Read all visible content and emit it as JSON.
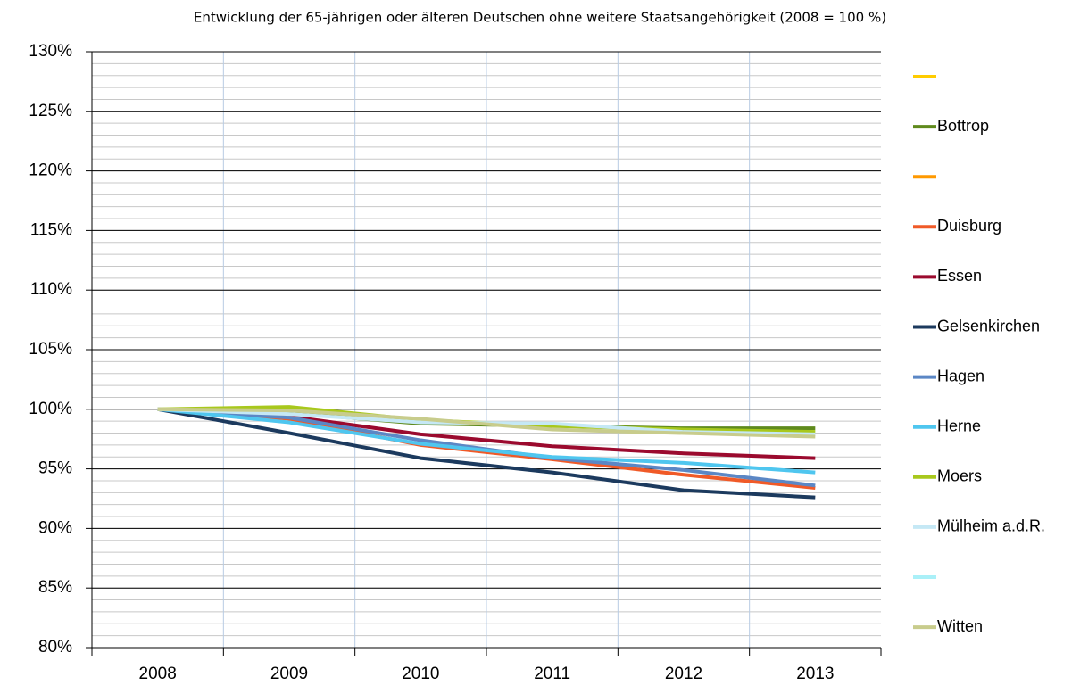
{
  "chart_data": {
    "type": "line",
    "title": "Entwicklung der 65-jährigen oder älteren Deutschen ohne weitere Staatsangehörigkeit (2008 = 100 %)",
    "categories": [
      "2008",
      "2009",
      "2010",
      "2011",
      "2012",
      "2013"
    ],
    "ylim": [
      80,
      130
    ],
    "yticks": [
      {
        "value": 80,
        "label": "80%"
      },
      {
        "value": 85,
        "label": "85%"
      },
      {
        "value": 90,
        "label": "90%"
      },
      {
        "value": 95,
        "label": "95%"
      },
      {
        "value": 100,
        "label": "100%"
      },
      {
        "value": 105,
        "label": "105%"
      },
      {
        "value": 110,
        "label": "110%"
      },
      {
        "value": 115,
        "label": "115%"
      },
      {
        "value": 120,
        "label": "120%"
      },
      {
        "value": 125,
        "label": "125%"
      },
      {
        "value": 130,
        "label": "130%"
      }
    ],
    "grid": true,
    "legend": "right",
    "series": [
      {
        "name": null,
        "color": "#ffcc00",
        "values": [
          null,
          null,
          null,
          null,
          null,
          null
        ]
      },
      {
        "name": "Bottrop",
        "color": "#5f8a1c",
        "values": [
          100,
          99.7,
          98.8,
          98.6,
          98.4,
          98.4
        ]
      },
      {
        "name": null,
        "color": "#ff9900",
        "values": [
          null,
          null,
          null,
          null,
          null,
          null
        ]
      },
      {
        "name": "Duisburg",
        "color": "#f05a28",
        "values": [
          100,
          99.2,
          97.0,
          95.8,
          94.5,
          93.4
        ]
      },
      {
        "name": "Essen",
        "color": "#9b0a2e",
        "values": [
          100,
          99.4,
          97.9,
          96.9,
          96.3,
          95.9
        ]
      },
      {
        "name": "Gelsenkirchen",
        "color": "#1c3a5e",
        "values": [
          100,
          98.0,
          95.9,
          94.7,
          93.2,
          92.6
        ]
      },
      {
        "name": "Hagen",
        "color": "#5b87c5",
        "values": [
          100,
          99.3,
          97.4,
          95.9,
          94.9,
          93.6
        ]
      },
      {
        "name": "Herne",
        "color": "#4fc6ef",
        "values": [
          100,
          98.9,
          97.1,
          96.0,
          95.5,
          94.7
        ]
      },
      {
        "name": "Moers",
        "color": "#a8c81c",
        "values": [
          100,
          100.2,
          99.1,
          98.6,
          98.3,
          98.1
        ]
      },
      {
        "name": "Mülheim a.d.R.",
        "color": "#c5e8f5",
        "values": [
          100,
          99.6,
          98.9,
          98.8,
          98.1,
          97.9
        ]
      },
      {
        "name": null,
        "color": "#aaf0f8",
        "values": [
          null,
          null,
          null,
          null,
          null,
          null
        ]
      },
      {
        "name": "Witten",
        "color": "#c8cc8c",
        "values": [
          100,
          99.9,
          99.2,
          98.3,
          98.0,
          97.7
        ]
      }
    ]
  }
}
